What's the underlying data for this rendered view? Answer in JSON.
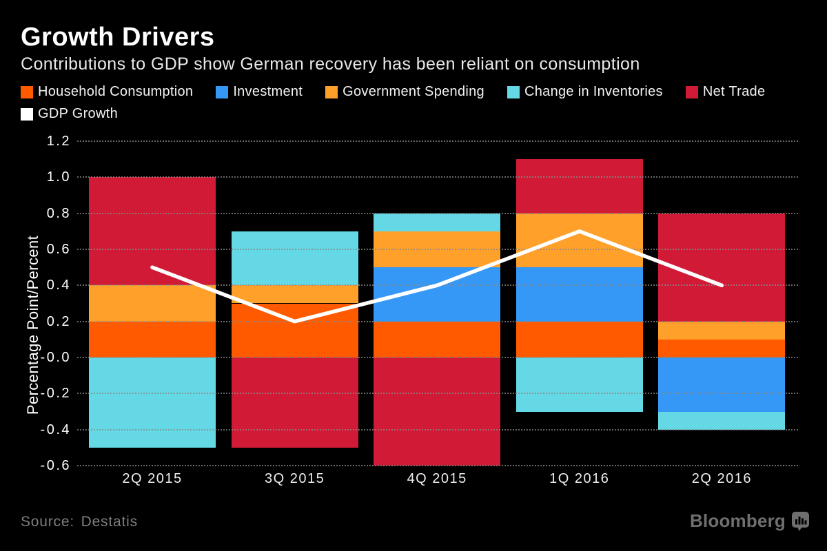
{
  "header": {
    "title": "Growth Drivers",
    "subtitle": "Contributions to GDP show German recovery has been reliant on consumption"
  },
  "legend": [
    {
      "label": "Household Consumption",
      "color": "#FF5A00"
    },
    {
      "label": "Investment",
      "color": "#3598F7"
    },
    {
      "label": "Government Spending",
      "color": "#FFA02B"
    },
    {
      "label": "Change in Inventories",
      "color": "#64D8E4"
    },
    {
      "label": "Net Trade",
      "color": "#D11A35"
    },
    {
      "label": "GDP Growth",
      "color": "#FFFFFF"
    }
  ],
  "chart_data": {
    "type": "bar",
    "subtype": "stacked-bar-with-line",
    "title": "Growth Drivers",
    "categories": [
      "2Q 2015",
      "3Q 2015",
      "4Q 2015",
      "1Q 2016",
      "2Q 2016"
    ],
    "series": [
      {
        "name": "Household Consumption",
        "type": "bar",
        "color": "#FF5A00",
        "values": [
          0.2,
          0.3,
          0.2,
          0.2,
          0.1
        ]
      },
      {
        "name": "Investment",
        "type": "bar",
        "color": "#3598F7",
        "values": [
          0,
          0,
          0.3,
          0.3,
          -0.3
        ]
      },
      {
        "name": "Government Spending",
        "type": "bar",
        "color": "#FFA02B",
        "values": [
          0.2,
          0.1,
          0.2,
          0.3,
          0.1
        ]
      },
      {
        "name": "Change in Inventories",
        "type": "bar",
        "color": "#64D8E4",
        "values": [
          -0.5,
          0.3,
          0.1,
          -0.3,
          -0.1
        ]
      },
      {
        "name": "Net Trade",
        "type": "bar",
        "color": "#D11A35",
        "values": [
          0.6,
          -0.5,
          -0.6,
          0.3,
          0.6
        ]
      },
      {
        "name": "GDP Growth",
        "type": "line",
        "color": "#FFFFFF",
        "values": [
          0.5,
          0.2,
          0.4,
          0.7,
          0.4
        ]
      }
    ],
    "xlabel": "",
    "ylabel": "Percentage Point/Percent",
    "yticks": [
      "1.2",
      "1.0",
      "0.8",
      "0.6",
      "0.4",
      "0.2",
      "-0.0",
      "-0.2",
      "-0.4",
      "-0.6"
    ],
    "ylim": [
      -0.6,
      1.2
    ],
    "grid": "horizontal-dotted",
    "legend_position": "top"
  },
  "footer": {
    "source": "Source: Destatis",
    "brand": "Bloomberg"
  }
}
